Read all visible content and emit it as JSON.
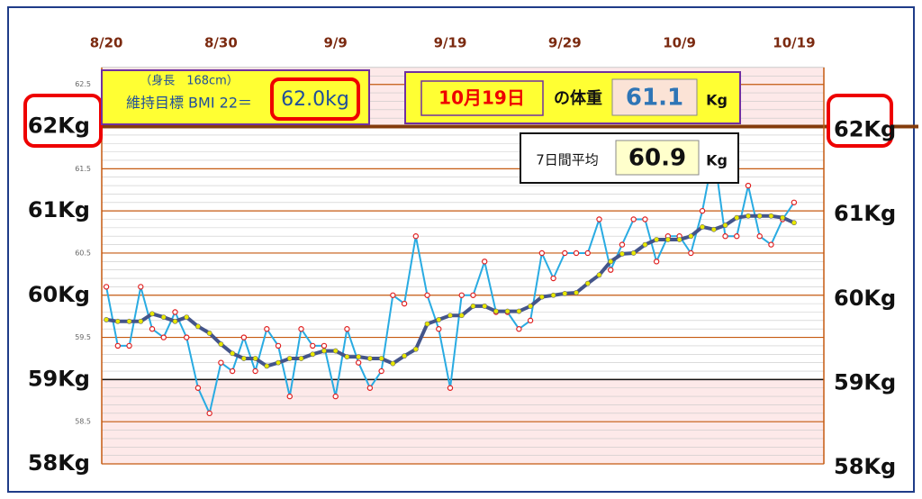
{
  "chart_data": {
    "type": "line",
    "x": [
      0,
      1,
      2,
      3,
      4,
      5,
      6,
      7,
      8,
      9,
      10,
      11,
      12,
      13,
      14,
      15,
      16,
      17,
      18,
      19,
      20,
      21,
      22,
      23,
      24,
      25,
      26,
      27,
      28,
      29,
      30,
      31,
      32,
      33,
      34,
      35,
      36,
      37,
      38,
      39,
      40,
      41,
      42,
      43,
      44,
      45,
      46,
      47,
      48,
      49,
      50,
      51,
      52,
      53,
      54,
      55,
      56,
      57,
      58,
      59,
      60
    ],
    "xlim": [
      -0.4,
      62.6
    ],
    "xticks": [
      {
        "value": 0,
        "label": "8/20"
      },
      {
        "value": 10,
        "label": "8/30"
      },
      {
        "value": 20,
        "label": "9/9"
      },
      {
        "value": 30,
        "label": "9/19"
      },
      {
        "value": 40,
        "label": "9/29"
      },
      {
        "value": 50,
        "label": "10/9"
      },
      {
        "value": 60,
        "label": "10/19"
      }
    ],
    "ylim": [
      58,
      62.7
    ],
    "yticks": [
      {
        "value": 62,
        "label": "62Kg"
      },
      {
        "value": 61,
        "label": "61Kg"
      },
      {
        "value": 60,
        "label": "60Kg"
      },
      {
        "value": 59,
        "label": "59Kg"
      },
      {
        "value": 58,
        "label": "58Kg"
      }
    ],
    "yticks_minor": [
      62.5,
      61.5,
      60.5,
      59.5,
      58.5
    ],
    "target_line": 62,
    "lower_line": 59,
    "series": [
      {
        "color": "#29abe2",
        "marker": "#e02020",
        "values": [
          60.1,
          59.4,
          59.4,
          60.1,
          59.6,
          59.5,
          59.8,
          59.5,
          58.9,
          58.6,
          59.2,
          59.1,
          59.5,
          59.1,
          59.6,
          59.4,
          58.8,
          59.6,
          59.4,
          59.4,
          58.8,
          59.6,
          59.2,
          58.9,
          59.1,
          60.0,
          59.9,
          60.7,
          60.0,
          59.6,
          58.9,
          60.0,
          60.0,
          60.4,
          59.8,
          59.8,
          59.6,
          59.7,
          60.5,
          60.2,
          60.5,
          60.5,
          60.5,
          60.9,
          60.3,
          60.6,
          60.9,
          60.9,
          60.4,
          60.7,
          60.7,
          60.5,
          61.0,
          61.7,
          60.7,
          60.7,
          61.3,
          60.7,
          60.6,
          60.9,
          61.1
        ]
      },
      {
        "color": "#44558a",
        "marker": "#e8e800",
        "values": [
          59.71,
          59.69,
          59.69,
          59.69,
          59.78,
          59.74,
          59.69,
          59.74,
          59.63,
          59.55,
          59.42,
          59.31,
          59.25,
          59.25,
          59.16,
          59.2,
          59.25,
          59.25,
          59.3,
          59.34,
          59.34,
          59.27,
          59.27,
          59.25,
          59.25,
          59.19,
          59.28,
          59.36,
          59.66,
          59.71,
          59.76,
          59.76,
          59.87,
          59.87,
          59.81,
          59.81,
          59.81,
          59.87,
          59.98,
          60.0,
          60.02,
          60.03,
          60.14,
          60.24,
          60.4,
          60.49,
          60.5,
          60.6,
          60.66,
          60.66,
          60.66,
          60.7,
          60.81,
          60.78,
          60.83,
          60.92,
          60.94,
          60.94,
          60.94,
          60.92,
          60.86
        ]
      }
    ],
    "info": {
      "height": "（身長　168cm）",
      "target_label": "維持目標 BMI 22＝",
      "target_value": "62.0kg",
      "date": "10月19日",
      "weight_label": "の体重",
      "weight": "61.1",
      "unit": "Kg",
      "avg_label": "7日間平均",
      "avg": "60.9",
      "avg_unit": "Kg"
    }
  }
}
